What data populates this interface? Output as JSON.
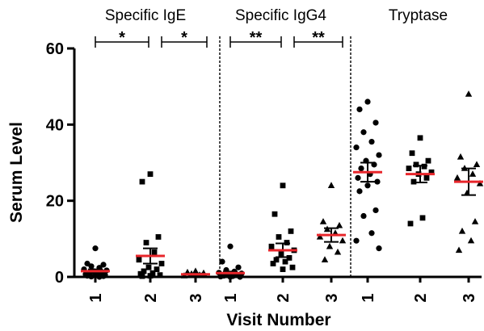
{
  "chart_data": {
    "type": "scatter",
    "xlabel": "Visit Number",
    "ylabel": "Serum Level",
    "ylim": [
      0,
      60
    ],
    "yticks": [
      0,
      20,
      40,
      60
    ],
    "grid": false,
    "mean_color": "#e8262b",
    "point_color": "#000000",
    "panels": [
      {
        "title": "Specific IgE",
        "categories": [
          "1",
          "2",
          "3"
        ],
        "series": [
          {
            "x": "1",
            "marker": "circle",
            "mean": 1.5,
            "sem": 0.5,
            "values": [
              7.5,
              3.5,
              3.2,
              2.8,
              2.4,
              2.0,
              1.7,
              1.5,
              1.3,
              1.1,
              0.9,
              0.7,
              0.5,
              0.4,
              0.3,
              0.2,
              0.1,
              0.0
            ]
          },
          {
            "x": "2",
            "marker": "square",
            "mean": 5.5,
            "sem": 2.0,
            "values": [
              27.0,
              25.0,
              10.5,
              9.0,
              6.5,
              4.5,
              3.5,
              2.5,
              2.0,
              1.5,
              1.0,
              0.8,
              0.5,
              0.3,
              0.2
            ]
          },
          {
            "x": "3",
            "marker": "triangle",
            "mean": 0.7,
            "sem": 0.2,
            "values": [
              1.5,
              1.2,
              1.0,
              0.8,
              0.5,
              0.3
            ]
          }
        ],
        "comparisons": [
          {
            "from": "1",
            "to": "2",
            "label": "*"
          },
          {
            "from": "2",
            "to": "3",
            "label": "*"
          }
        ]
      },
      {
        "title": "Specific IgG4",
        "categories": [
          "1",
          "2",
          "3"
        ],
        "series": [
          {
            "x": "1",
            "marker": "circle",
            "mean": 1.0,
            "sem": 0.4,
            "values": [
              8.0,
              4.0,
              2.5,
              1.8,
              1.4,
              1.1,
              0.9,
              0.7,
              0.5,
              0.3,
              0.2,
              0.1,
              0.0,
              0.0
            ]
          },
          {
            "x": "2",
            "marker": "square",
            "mean": 7.0,
            "sem": 1.8,
            "values": [
              24.0,
              16.5,
              12.0,
              10.5,
              9.0,
              8.0,
              7.0,
              6.0,
              5.0,
              4.5,
              4.0,
              3.5,
              2.5,
              2.0
            ]
          },
          {
            "x": "3",
            "marker": "triangle",
            "mean": 11.0,
            "sem": 1.8,
            "values": [
              24.0,
              14.5,
              13.5,
              12.5,
              11.5,
              10.5,
              9.5,
              8.0,
              6.5,
              4.5
            ]
          }
        ],
        "comparisons": [
          {
            "from": "1",
            "to": "2",
            "label": "**"
          },
          {
            "from": "2",
            "to": "3",
            "label": "**"
          }
        ]
      },
      {
        "title": "Tryptase",
        "categories": [
          "1",
          "2",
          "3"
        ],
        "series": [
          {
            "x": "1",
            "marker": "circle",
            "mean": 27.5,
            "sem": 2.5,
            "values": [
              46.0,
              44.0,
              40.5,
              38.0,
              35.5,
              34.0,
              32.0,
              30.5,
              29.5,
              28.5,
              27.0,
              26.0,
              25.0,
              24.0,
              22.5,
              17.5,
              16.0,
              11.5,
              9.5,
              7.5
            ]
          },
          {
            "x": "2",
            "marker": "square",
            "mean": 27.0,
            "sem": 2.2,
            "values": [
              36.5,
              32.5,
              30.5,
              29.5,
              29.0,
              28.5,
              27.5,
              27.0,
              26.0,
              25.0,
              15.5,
              14.0
            ]
          },
          {
            "x": "3",
            "marker": "triangle",
            "mean": 25.0,
            "sem": 3.5,
            "values": [
              48.0,
              31.5,
              29.5,
              28.5,
              27.0,
              26.0,
              24.5,
              22.0,
              14.5,
              12.0,
              9.5,
              7.0
            ]
          }
        ],
        "comparisons": []
      }
    ]
  }
}
